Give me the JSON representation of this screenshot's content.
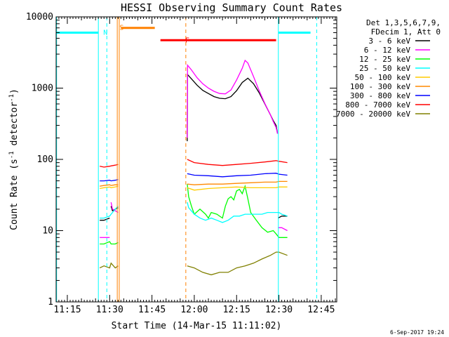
{
  "chart_data": {
    "type": "line",
    "title": "HESSI Observing Summary Count Rates",
    "xlabel": "Start Time (14-Mar-15 11:11:02)",
    "ylabel_main": "Count Rate (s",
    "ylabel_sup1": "-1",
    "ylabel_mid": " detector",
    "ylabel_sup2": "-1",
    "ylabel_end": ")",
    "yscale": "log",
    "ylim": [
      1,
      10000
    ],
    "xlim": [
      "11:11",
      "12:50"
    ],
    "x_ticks": [
      "11:15",
      "11:30",
      "11:45",
      "12:00",
      "12:15",
      "12:30",
      "12:45"
    ],
    "x_tick_minutes": [
      15,
      30,
      45,
      60,
      75,
      90,
      105
    ],
    "y_ticks": [
      "1",
      "10",
      "100",
      "1000",
      "10000"
    ],
    "y_tick_values": [
      1,
      10,
      100,
      1000,
      10000
    ],
    "legend_header": [
      "Det 1,3,5,6,7,9,",
      "FDecim 1, Att 0"
    ],
    "legend_position": "right",
    "timestamp": "6-Sep-2017 19:24",
    "x_unit_note": "x values are minutes after 11:00",
    "series": [
      {
        "name": "3 - 6 keV",
        "color": "#000000",
        "segments": [
          {
            "x": [
              26.5,
              28,
              29,
              30
            ],
            "y": [
              14,
              14,
              14.5,
              15
            ]
          },
          {
            "x": [
              30.5,
              31,
              32,
              33
            ],
            "y": [
              22,
              19,
              20,
              21
            ]
          },
          {
            "x": [
              57.5,
              57.6,
              59,
              61,
              63,
              65,
              67,
              69,
              71,
              73,
              75,
              77,
              79,
              81,
              83,
              85,
              87,
              88,
              89,
              89.5
            ],
            "y": [
              180,
              1550,
              1350,
              1100,
              930,
              840,
              760,
              720,
              710,
              760,
              920,
              1200,
              1380,
              1150,
              860,
              600,
              420,
              350,
              300,
              230
            ]
          },
          {
            "x": [
              89.7,
              91,
              93
            ],
            "y": [
              15,
              16,
              16
            ]
          }
        ]
      },
      {
        "name": "6 - 12 keV",
        "color": "#ff00ff",
        "segments": [
          {
            "x": [
              26.5,
              28,
              30
            ],
            "y": [
              8,
              8,
              8
            ]
          },
          {
            "x": [
              30.5,
              31,
              32,
              33
            ],
            "y": [
              25,
              20,
              19,
              18
            ]
          },
          {
            "x": [
              57.5,
              57.6,
              59,
              61,
              63,
              65,
              67,
              69,
              71,
              73,
              75,
              77,
              78,
              79,
              81,
              83,
              85,
              87,
              88,
              89,
              89.5
            ],
            "y": [
              200,
              2100,
              1800,
              1400,
              1150,
              1000,
              900,
              840,
              830,
              940,
              1300,
              1900,
              2450,
              2250,
              1450,
              920,
              610,
              420,
              340,
              280,
              230
            ]
          },
          {
            "x": [
              89.7,
              91,
              93
            ],
            "y": [
              11,
              11,
              10
            ]
          }
        ]
      },
      {
        "name": "12 - 25 keV",
        "color": "#00ff00",
        "segments": [
          {
            "x": [
              26.5,
              28,
              30,
              30.5,
              32,
              33
            ],
            "y": [
              6.5,
              6.5,
              7,
              6.5,
              6.5,
              6.8
            ]
          },
          {
            "x": [
              57.5,
              58,
              59,
              60,
              62,
              64,
              65,
              66,
              68,
              70,
              71,
              72,
              73,
              74,
              75,
              76,
              77,
              78,
              79,
              80,
              82,
              84,
              86,
              88,
              89,
              90,
              91,
              93
            ],
            "y": [
              45,
              30,
              22,
              17,
              20,
              17,
              15,
              18,
              17,
              15,
              22,
              28,
              30,
              27,
              36,
              38,
              33,
              42,
              28,
              18,
              14,
              11,
              9.5,
              10,
              9,
              8,
              8,
              8
            ]
          }
        ]
      },
      {
        "name": "25 - 50 keV",
        "color": "#00ffff",
        "segments": [
          {
            "x": [
              26.5,
              28,
              30,
              30.5,
              32,
              33
            ],
            "y": [
              15,
              15,
              16,
              17,
              20,
              22
            ]
          },
          {
            "x": [
              57.5,
              58,
              60,
              62,
              64,
              66,
              68,
              70,
              72,
              74,
              76,
              78,
              80,
              82,
              84,
              86,
              88,
              89,
              90,
              91,
              93
            ],
            "y": [
              25,
              21,
              17,
              15,
              14,
              15,
              14,
              13,
              14,
              16,
              16,
              17,
              17,
              17,
              17,
              18,
              18,
              18,
              18,
              17,
              16
            ]
          }
        ]
      },
      {
        "name": "50 - 100 keV",
        "color": "#ffcc00",
        "segments": [
          {
            "x": [
              26.5,
              28,
              30,
              30.5,
              32,
              33
            ],
            "y": [
              39,
              40,
              41,
              40,
              41,
              42
            ]
          },
          {
            "x": [
              57.5,
              60,
              65,
              70,
              75,
              80,
              85,
              89,
              90,
              93
            ],
            "y": [
              40,
              37,
              39,
              40,
              41,
              40,
              40,
              40,
              41,
              41
            ]
          }
        ]
      },
      {
        "name": "100 - 300 keV",
        "color": "#ff8800",
        "segments": [
          {
            "x": [
              26.5,
              28,
              30,
              30.5,
              32,
              33
            ],
            "y": [
              42,
              43,
              44,
              43,
              44,
              44
            ]
          },
          {
            "x": [
              57.5,
              60,
              65,
              70,
              75,
              80,
              85,
              89,
              90,
              93
            ],
            "y": [
              45,
              44,
              45,
              45,
              46,
              47,
              48,
              48,
              49,
              49
            ]
          }
        ]
      },
      {
        "name": "300 - 800 keV",
        "color": "#0000ff",
        "segments": [
          {
            "x": [
              26.5,
              28,
              30,
              30.5,
              32,
              33
            ],
            "y": [
              50,
              50,
              51,
              50,
              51,
              52
            ]
          },
          {
            "x": [
              57.5,
              60,
              65,
              70,
              75,
              80,
              85,
              89,
              90,
              93
            ],
            "y": [
              63,
              60,
              59,
              57,
              59,
              60,
              63,
              64,
              62,
              60
            ]
          }
        ]
      },
      {
        "name": "800 - 7000 keV",
        "color": "#ff0000",
        "segments": [
          {
            "x": [
              26.5,
              28,
              30,
              30.5,
              32,
              33
            ],
            "y": [
              80,
              78,
              80,
              81,
              83,
              85
            ]
          },
          {
            "x": [
              57.5,
              60,
              65,
              70,
              75,
              80,
              85,
              89,
              90,
              93
            ],
            "y": [
              100,
              90,
              85,
              82,
              85,
              88,
              92,
              96,
              94,
              90
            ]
          }
        ]
      },
      {
        "name": "7000 - 20000 keV",
        "color": "#808000",
        "segments": [
          {
            "x": [
              26.5,
              28,
              30,
              30.5,
              32,
              33
            ],
            "y": [
              3,
              3.2,
              3,
              3.5,
              3,
              3.2
            ]
          },
          {
            "x": [
              57.5,
              60,
              63,
              66,
              69,
              72,
              75,
              78,
              81,
              84,
              87,
              89,
              90,
              93
            ],
            "y": [
              3.2,
              3,
              2.6,
              2.4,
              2.6,
              2.6,
              3,
              3.2,
              3.5,
              4,
              4.5,
              5,
              5,
              4.5
            ]
          }
        ]
      }
    ],
    "flag_bars": [
      {
        "letter": "",
        "color": "#00ffff",
        "x0": 11.2,
        "x1": 26.0,
        "y": 6000
      },
      {
        "letter": "N",
        "color": "#00ffff",
        "x0": 89.8,
        "x1": 101.2,
        "y": 6000
      },
      {
        "letter": "S",
        "color": "#ff8000",
        "x0": 34.0,
        "x1": 46.0,
        "y": 7000
      },
      {
        "letter": "F",
        "color": "#ff0000",
        "x0": 48.0,
        "x1": 89.0,
        "y": 4700
      }
    ],
    "flag_letter_marks": [
      {
        "letter": "N",
        "color": "#00ffff",
        "x": 28.5,
        "y": 6000
      },
      {
        "letter": "S",
        "color": "#ff8000",
        "x": 34.3,
        "y": 7000
      },
      {
        "letter": "F",
        "color": "#ff0000",
        "x": 57.5,
        "y": 4700
      }
    ],
    "vlines": [
      {
        "x": 11.2,
        "color": "#00ffff",
        "dash": false
      },
      {
        "x": 26.0,
        "color": "#00ffff",
        "dash": false
      },
      {
        "x": 29.0,
        "color": "#00ffff",
        "dash": true
      },
      {
        "x": 33.4,
        "color": "#ff8000",
        "dash": false
      },
      {
        "x": 32.7,
        "color": "#ff8000",
        "dash": false
      },
      {
        "x": 57.0,
        "color": "#ff8000",
        "dash": true
      },
      {
        "x": 89.8,
        "color": "#00ffff",
        "dash": false
      },
      {
        "x": 103.4,
        "color": "#00ffff",
        "dash": true
      }
    ]
  }
}
